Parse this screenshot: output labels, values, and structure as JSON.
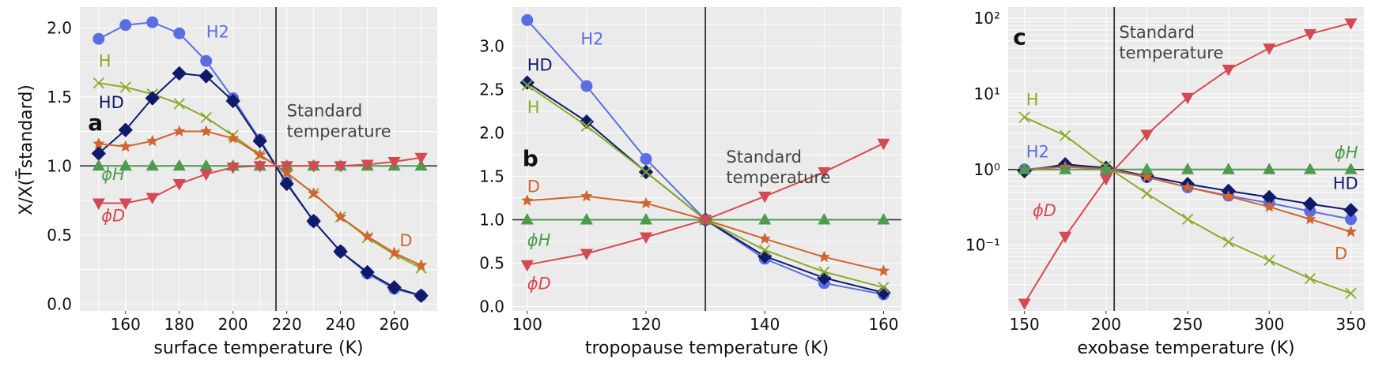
{
  "ylabel": "X/X(T̄standard)",
  "std_label_lines": [
    "Standard",
    "temperature"
  ],
  "colors": {
    "H2": "#5b6ee1",
    "HD": "#101a6b",
    "H": "#8aab2a",
    "D": "#d0652e",
    "phiH": "#4e9a4e",
    "phiD": "#d44a52",
    "vline": "#333333",
    "hline": "#222222"
  },
  "chart_data": [
    {
      "type": "line",
      "panel": "a",
      "xlabel": "surface temperature (K)",
      "xlim": [
        143,
        276
      ],
      "ylim": [
        -0.05,
        2.15
      ],
      "xticks": [
        160,
        180,
        200,
        220,
        240,
        260
      ],
      "yticks": [
        0.0,
        0.5,
        1.0,
        1.5,
        2.0
      ],
      "ytick_labels": [
        "0.0",
        "0.5",
        "1.0",
        "1.5",
        "2.0"
      ],
      "std_x": 216,
      "hline_y": 1.0,
      "series": [
        {
          "name": "H2",
          "key": "H2",
          "marker": "circle",
          "x": [
            150,
            160,
            170,
            180,
            190,
            200,
            210,
            220,
            230,
            240,
            250,
            260,
            270
          ],
          "values": [
            1.92,
            2.02,
            2.04,
            1.96,
            1.76,
            1.49,
            1.19,
            0.88,
            0.6,
            0.38,
            0.22,
            0.11,
            0.06
          ]
        },
        {
          "name": "H",
          "key": "H",
          "marker": "x",
          "x": [
            150,
            160,
            170,
            180,
            190,
            200,
            210,
            220,
            230,
            240,
            250,
            260,
            270
          ],
          "values": [
            1.6,
            1.57,
            1.52,
            1.45,
            1.35,
            1.22,
            1.08,
            0.95,
            0.8,
            0.63,
            0.48,
            0.36,
            0.26
          ]
        },
        {
          "name": "HD",
          "key": "HD",
          "marker": "diamond",
          "x": [
            150,
            160,
            170,
            180,
            190,
            200,
            210,
            220,
            230,
            240,
            250,
            260,
            270
          ],
          "values": [
            1.09,
            1.26,
            1.49,
            1.67,
            1.65,
            1.47,
            1.18,
            0.87,
            0.6,
            0.38,
            0.23,
            0.12,
            0.06
          ]
        },
        {
          "name": "D",
          "key": "D",
          "marker": "star",
          "x": [
            150,
            160,
            170,
            180,
            190,
            200,
            210,
            220,
            230,
            240,
            250,
            260,
            270
          ],
          "values": [
            1.16,
            1.14,
            1.18,
            1.25,
            1.25,
            1.2,
            1.08,
            0.95,
            0.8,
            0.63,
            0.49,
            0.37,
            0.28
          ]
        },
        {
          "name": "ϕH",
          "key": "phiH",
          "marker": "triangle-up",
          "x": [
            150,
            160,
            170,
            180,
            190,
            200,
            210,
            220,
            230,
            240,
            250,
            260,
            270
          ],
          "values": [
            1.0,
            1.0,
            1.0,
            1.0,
            1.0,
            1.0,
            1.0,
            1.0,
            1.0,
            1.0,
            1.0,
            1.0,
            1.0
          ]
        },
        {
          "name": "ϕD",
          "key": "phiD",
          "marker": "triangle-down",
          "x": [
            150,
            160,
            170,
            180,
            190,
            200,
            210,
            220,
            230,
            240,
            250,
            260,
            270
          ],
          "values": [
            0.73,
            0.73,
            0.77,
            0.87,
            0.94,
            0.99,
            1.0,
            1.0,
            1.0,
            1.0,
            1.01,
            1.03,
            1.06
          ]
        }
      ],
      "labels": [
        {
          "text": "H2",
          "key": "H2",
          "x": 190,
          "y": 1.93
        },
        {
          "text": "H",
          "key": "H",
          "x": 150,
          "y": 1.72
        },
        {
          "text": "HD",
          "key": "HD",
          "x": 150,
          "y": 1.42
        },
        {
          "text": "a",
          "key": "letter",
          "x": 146,
          "y": 1.26
        },
        {
          "text": "ϕH",
          "key": "phiH",
          "x": 151,
          "y": 0.9
        },
        {
          "text": "ϕD",
          "key": "phiD",
          "x": 151,
          "y": 0.6
        },
        {
          "text": "D",
          "key": "D",
          "x": 262,
          "y": 0.42
        }
      ],
      "std_label_pos": {
        "x": 220,
        "y": 1.36
      }
    },
    {
      "type": "line",
      "panel": "b",
      "xlabel": "tropopause temperature (K)",
      "xlim": [
        97.5,
        163
      ],
      "ylim": [
        -0.05,
        3.45
      ],
      "xticks": [
        100,
        120,
        140,
        160
      ],
      "yticks": [
        0.0,
        0.5,
        1.0,
        1.5,
        2.0,
        2.5,
        3.0
      ],
      "ytick_labels": [
        "0.0",
        "0.5",
        "1.0",
        "1.5",
        "2.0",
        "2.5",
        "3.0"
      ],
      "std_x": 130,
      "hline_y": 1.0,
      "series": [
        {
          "name": "H2",
          "key": "H2",
          "marker": "circle",
          "x": [
            100,
            110,
            120,
            130,
            140,
            150,
            160
          ],
          "values": [
            3.3,
            2.54,
            1.7,
            1.0,
            0.55,
            0.27,
            0.14
          ]
        },
        {
          "name": "HD",
          "key": "HD",
          "marker": "diamond",
          "x": [
            100,
            110,
            120,
            130,
            140,
            150,
            160
          ],
          "values": [
            2.58,
            2.13,
            1.55,
            1.0,
            0.58,
            0.33,
            0.16
          ]
        },
        {
          "name": "H",
          "key": "H",
          "marker": "x",
          "x": [
            100,
            110,
            120,
            130,
            140,
            150,
            160
          ],
          "values": [
            2.55,
            2.08,
            1.55,
            1.0,
            0.65,
            0.4,
            0.22
          ]
        },
        {
          "name": "D",
          "key": "D",
          "marker": "star",
          "x": [
            100,
            110,
            120,
            130,
            140,
            150,
            160
          ],
          "values": [
            1.22,
            1.27,
            1.19,
            1.0,
            0.78,
            0.57,
            0.41
          ]
        },
        {
          "name": "ϕH",
          "key": "phiH",
          "marker": "triangle-up",
          "x": [
            100,
            110,
            120,
            130,
            140,
            150,
            160
          ],
          "values": [
            1.0,
            1.0,
            1.0,
            1.0,
            1.0,
            1.0,
            1.0
          ]
        },
        {
          "name": "ϕD",
          "key": "phiD",
          "marker": "triangle-down",
          "x": [
            100,
            110,
            120,
            130,
            140,
            150,
            160
          ],
          "values": [
            0.48,
            0.61,
            0.8,
            1.0,
            1.27,
            1.55,
            1.88
          ]
        }
      ],
      "labels": [
        {
          "text": "H2",
          "key": "H2",
          "x": 109,
          "y": 3.02
        },
        {
          "text": "HD",
          "key": "HD",
          "x": 100,
          "y": 2.72
        },
        {
          "text": "H",
          "key": "H",
          "x": 100,
          "y": 2.23
        },
        {
          "text": "b",
          "key": "letter",
          "x": 99.2,
          "y": 1.62
        },
        {
          "text": "D",
          "key": "D",
          "x": 100,
          "y": 1.32
        },
        {
          "text": "ϕH",
          "key": "phiH",
          "x": 100,
          "y": 0.7
        },
        {
          "text": "ϕD",
          "key": "phiD",
          "x": 100,
          "y": 0.2
        }
      ],
      "std_label_pos": {
        "x": 133.5,
        "y": 1.66
      }
    },
    {
      "type": "line",
      "panel": "c",
      "xlabel": "exobase temperature (K)",
      "xscale": "linear",
      "yscale": "log",
      "xlim": [
        140,
        358
      ],
      "ylim": [
        0.0135,
        140
      ],
      "xticks": [
        150,
        200,
        250,
        300,
        350
      ],
      "yticks": [
        0.1,
        1,
        10,
        100
      ],
      "ytick_labels": [
        "10⁻¹",
        "10⁰",
        "10¹",
        "10²"
      ],
      "std_x": 205,
      "hline_y": 1.0,
      "series": [
        {
          "name": "H2",
          "key": "H2",
          "marker": "circle",
          "x": [
            150,
            175,
            200,
            225,
            250,
            275,
            300,
            325,
            350
          ],
          "values": [
            1.0,
            1.12,
            1.0,
            0.79,
            0.58,
            0.45,
            0.36,
            0.28,
            0.22
          ]
        },
        {
          "name": "HD",
          "key": "HD",
          "marker": "diamond",
          "x": [
            150,
            175,
            200,
            225,
            250,
            275,
            300,
            325,
            350
          ],
          "values": [
            0.95,
            1.17,
            1.05,
            0.82,
            0.64,
            0.52,
            0.43,
            0.35,
            0.29
          ]
        },
        {
          "name": "D",
          "key": "D",
          "marker": "star",
          "x": [
            150,
            175,
            200,
            225,
            250,
            275,
            300,
            325,
            350
          ],
          "values": [
            1.0,
            1.08,
            1.02,
            0.8,
            0.58,
            0.44,
            0.32,
            0.22,
            0.15
          ]
        },
        {
          "name": "H",
          "key": "H",
          "marker": "x",
          "x": [
            150,
            175,
            200,
            225,
            250,
            275,
            300,
            325,
            350
          ],
          "values": [
            4.9,
            2.8,
            1.1,
            0.48,
            0.22,
            0.11,
            0.063,
            0.036,
            0.023
          ]
        },
        {
          "name": "ϕH",
          "key": "phiH",
          "marker": "triangle-up",
          "x": [
            150,
            175,
            200,
            225,
            250,
            275,
            300,
            325,
            350
          ],
          "values": [
            1.0,
            1.0,
            1.0,
            1.0,
            1.0,
            1.0,
            1.0,
            1.0,
            1.0
          ]
        },
        {
          "name": "ϕD",
          "key": "phiD",
          "marker": "triangle-down",
          "x": [
            150,
            175,
            200,
            225,
            250,
            275,
            300,
            325,
            350
          ],
          "values": [
            0.017,
            0.13,
            0.75,
            2.9,
            8.9,
            21,
            40,
            62,
            86
          ]
        }
      ],
      "labels": [
        {
          "text": "c",
          "key": "letter",
          "x": 143,
          "y": 45
        },
        {
          "text": "H",
          "key": "H",
          "x": 151,
          "y": 7.0
        },
        {
          "text": "H2",
          "key": "H2",
          "x": 151,
          "y": 1.45
        },
        {
          "text": "ϕD",
          "key": "phiD",
          "x": 155,
          "y": 0.24
        },
        {
          "text": "ϕH",
          "key": "phiH",
          "x": 340,
          "y": 1.4
        },
        {
          "text": "HD",
          "key": "HD",
          "x": 339,
          "y": 0.55
        },
        {
          "text": "D",
          "key": "D",
          "x": 340,
          "y": 0.065
        }
      ],
      "std_label_pos": {
        "x": 208,
        "y": 55
      }
    }
  ]
}
